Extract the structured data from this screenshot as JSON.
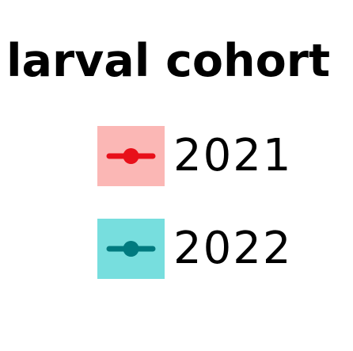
{
  "chart_data": {
    "type": "line",
    "legend_title": "larval cohort",
    "series": [
      {
        "name": "2021",
        "color": "#e8101a",
        "band_color": "#fbb7b5"
      },
      {
        "name": "2022",
        "color": "#007a7f",
        "band_color": "#77dede"
      }
    ],
    "grid": false,
    "legend_placement": "center"
  }
}
